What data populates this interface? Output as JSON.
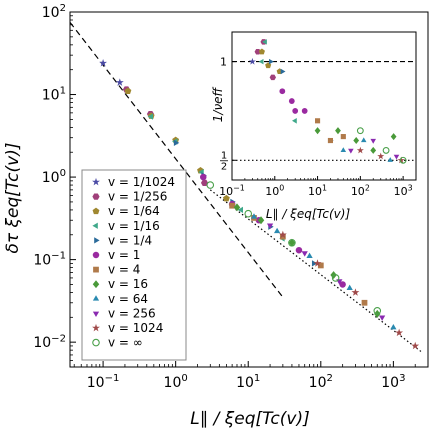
{
  "chart_data": [
    {
      "type": "scatter",
      "title": "",
      "xlabel": "L∥ / ξeq[Tc(v)]",
      "ylabel": "δτ ξeq[Tc(v)]",
      "xscale": "log",
      "yscale": "log",
      "xlim": [
        0.035,
        3000
      ],
      "ylim": [
        0.005,
        100
      ],
      "x_ticks": [
        {
          "value": 0.1,
          "base": "10",
          "exp": "−1"
        },
        {
          "value": 1,
          "base": "10",
          "exp": "0"
        },
        {
          "value": 10,
          "base": "10",
          "exp": "1"
        },
        {
          "value": 100,
          "base": "10",
          "exp": "2"
        },
        {
          "value": 1000,
          "base": "10",
          "exp": "3"
        }
      ],
      "y_ticks": [
        {
          "value": 0.01,
          "base": "10",
          "exp": "−2"
        },
        {
          "value": 0.1,
          "base": "10",
          "exp": "−1"
        },
        {
          "value": 1,
          "base": "10",
          "exp": "0"
        },
        {
          "value": 10,
          "base": "10",
          "exp": "1"
        },
        {
          "value": 100,
          "base": "10",
          "exp": "2"
        }
      ],
      "grid": false,
      "legend_position": "lower-left",
      "reference_lines": [
        {
          "style": "dashed",
          "points": [
            [
              0.035,
              75
            ],
            [
              30,
              0.035
            ]
          ]
        },
        {
          "style": "dotted",
          "points": [
            [
              3,
              0.7
            ],
            [
              2500,
              0.0075
            ]
          ]
        }
      ],
      "series": [
        {
          "name": "v = 1/1024",
          "marker": "star",
          "color": "#4b4ba5",
          "points": [
            [
              0.1,
              24
            ],
            [
              0.17,
              14
            ]
          ]
        },
        {
          "name": "v = 1/256",
          "marker": "hexagon",
          "color": "#a0407a",
          "points": [
            [
              0.21,
              11.5
            ],
            [
              0.45,
              5.8
            ],
            [
              2.5,
              0.85
            ]
          ]
        },
        {
          "name": "v = 1/64",
          "marker": "pentagon",
          "color": "#a08830",
          "points": [
            [
              0.22,
              11
            ],
            [
              0.46,
              5.5
            ],
            [
              1.0,
              2.8
            ],
            [
              2.2,
              1.2
            ],
            [
              5,
              0.55
            ]
          ]
        },
        {
          "name": "v = 1/16",
          "marker": "triangle-left",
          "color": "#3fa88a",
          "points": [
            [
              0.46,
              5.4
            ],
            [
              1.0,
              2.7
            ],
            [
              2.3,
              1.15
            ],
            [
              8,
              0.4
            ],
            [
              30,
              0.18
            ]
          ]
        },
        {
          "name": "v = 1/4",
          "marker": "triangle-right",
          "color": "#2a6a9a",
          "points": [
            [
              1.0,
              2.6
            ],
            [
              2.4,
              1.05
            ],
            [
              6,
              0.5
            ],
            [
              20,
              0.25
            ],
            [
              80,
              0.09
            ]
          ]
        },
        {
          "name": "v = 1",
          "marker": "circle",
          "color": "#9a2aa0",
          "points": [
            [
              2.4,
              1.0
            ],
            [
              6,
              0.47
            ],
            [
              14,
              0.3
            ],
            [
              50,
              0.13
            ],
            [
              200,
              0.05
            ]
          ]
        },
        {
          "name": "v = 4",
          "marker": "square",
          "color": "#b07a4a",
          "points": [
            [
              6,
              0.45
            ],
            [
              12,
              0.32
            ],
            [
              30,
              0.19
            ],
            [
              100,
              0.085
            ],
            [
              400,
              0.03
            ]
          ]
        },
        {
          "name": "v = 16",
          "marker": "diamond",
          "color": "#4a9a3a",
          "points": [
            [
              7,
              0.43
            ],
            [
              15,
              0.3
            ],
            [
              40,
              0.16
            ],
            [
              150,
              0.065
            ],
            [
              600,
              0.022
            ]
          ]
        },
        {
          "name": "v = 64",
          "marker": "triangle-up",
          "color": "#2a8ab0",
          "points": [
            [
              12,
              0.33
            ],
            [
              25,
              0.22
            ],
            [
              70,
              0.11
            ],
            [
              250,
              0.045
            ],
            [
              1000,
              0.015
            ]
          ]
        },
        {
          "name": "v = 256",
          "marker": "triangle-down",
          "color": "#8a2ab0",
          "points": [
            [
              20,
              0.26
            ],
            [
              60,
              0.12
            ],
            [
              180,
              0.055
            ],
            [
              700,
              0.02
            ]
          ]
        },
        {
          "name": "v = 1024",
          "marker": "star",
          "color": "#a04a4a",
          "points": [
            [
              30,
              0.2
            ],
            [
              90,
              0.09
            ],
            [
              300,
              0.04
            ],
            [
              1200,
              0.013
            ],
            [
              2000,
              0.009
            ]
          ]
        },
        {
          "name": "v = ∞",
          "marker": "open-circle",
          "color": "#4aa04a",
          "points": [
            [
              3,
              0.8
            ],
            [
              10,
              0.36
            ],
            [
              40,
              0.16
            ],
            [
              160,
              0.06
            ],
            [
              600,
              0.024
            ]
          ]
        }
      ]
    },
    {
      "type": "scatter",
      "title": "",
      "xlabel": "L∥ / ξeq[Tc(v)]",
      "ylabel": "1/νeff",
      "xscale": "log",
      "yscale": "linear",
      "xlim": [
        0.1,
        2000
      ],
      "ylim": [
        0.4,
        1.15
      ],
      "x_ticks": [
        {
          "value": 0.1,
          "base": "10",
          "exp": "−1"
        },
        {
          "value": 1,
          "base": "10",
          "exp": "0"
        },
        {
          "value": 10,
          "base": "10",
          "exp": "1"
        },
        {
          "value": 100,
          "base": "10",
          "exp": "2"
        },
        {
          "value": 1000,
          "base": "10",
          "exp": "3"
        }
      ],
      "y_ticks": [
        {
          "value": 0.5,
          "label": "1/2"
        },
        {
          "value": 1.0,
          "label": "1"
        }
      ],
      "grid": false,
      "reference_lines": [
        {
          "style": "dashed",
          "y": 1.0
        },
        {
          "style": "dotted",
          "y": 0.5
        }
      ],
      "series": [
        {
          "name": "v = 1/1024",
          "marker": "star",
          "color": "#4b4ba5",
          "points": [
            [
              0.3,
              1.0
            ]
          ]
        },
        {
          "name": "v = 1/256",
          "marker": "hexagon",
          "color": "#a0407a",
          "points": [
            [
              0.4,
              1.05
            ],
            [
              0.55,
              1.1
            ],
            [
              0.9,
              0.92
            ]
          ]
        },
        {
          "name": "v = 1/64",
          "marker": "pentagon",
          "color": "#a08830",
          "points": [
            [
              0.5,
              1.05
            ],
            [
              0.7,
              0.98
            ],
            [
              1.3,
              0.95
            ]
          ]
        },
        {
          "name": "v = 1/16",
          "marker": "triangle-left",
          "color": "#3fa88a",
          "points": [
            [
              0.5,
              1.0
            ],
            [
              0.6,
              1.1
            ],
            [
              3,
              0.7
            ]
          ]
        },
        {
          "name": "v = 1/4",
          "marker": "triangle-right",
          "color": "#2a6a9a",
          "points": [
            [
              0.8,
              1.0
            ],
            [
              1.5,
              0.95
            ],
            [
              20,
              0.6
            ]
          ]
        },
        {
          "name": "v = 1",
          "marker": "circle",
          "color": "#9a2aa0",
          "points": [
            [
              1.5,
              0.85
            ],
            [
              2.5,
              0.8
            ],
            [
              3,
              0.75
            ],
            [
              5,
              0.75
            ]
          ]
        },
        {
          "name": "v = 4",
          "marker": "square",
          "color": "#b07a4a",
          "points": [
            [
              10,
              0.7
            ],
            [
              20,
              0.6
            ],
            [
              40,
              0.62
            ]
          ]
        },
        {
          "name": "v = 16",
          "marker": "diamond",
          "color": "#4a9a3a",
          "points": [
            [
              10,
              0.65
            ],
            [
              30,
              0.65
            ],
            [
              80,
              0.6
            ],
            [
              200,
              0.55
            ],
            [
              600,
              0.62
            ]
          ]
        },
        {
          "name": "v = 64",
          "marker": "triangle-up",
          "color": "#2a8ab0",
          "points": [
            [
              40,
              0.55
            ],
            [
              120,
              0.6
            ],
            [
              500,
              0.5
            ]
          ]
        },
        {
          "name": "v = 256",
          "marker": "triangle-down",
          "color": "#8a2ab0",
          "points": [
            [
              60,
              0.55
            ],
            [
              200,
              0.6
            ],
            [
              700,
              0.52
            ]
          ]
        },
        {
          "name": "v = 1024",
          "marker": "star",
          "color": "#a04a4a",
          "points": [
            [
              100,
              0.55
            ],
            [
              300,
              0.52
            ],
            [
              900,
              0.5
            ]
          ]
        },
        {
          "name": "v = ∞",
          "marker": "open-circle",
          "color": "#4aa04a",
          "points": [
            [
              100,
              0.65
            ],
            [
              400,
              0.55
            ],
            [
              1000,
              0.5
            ]
          ]
        }
      ]
    }
  ]
}
